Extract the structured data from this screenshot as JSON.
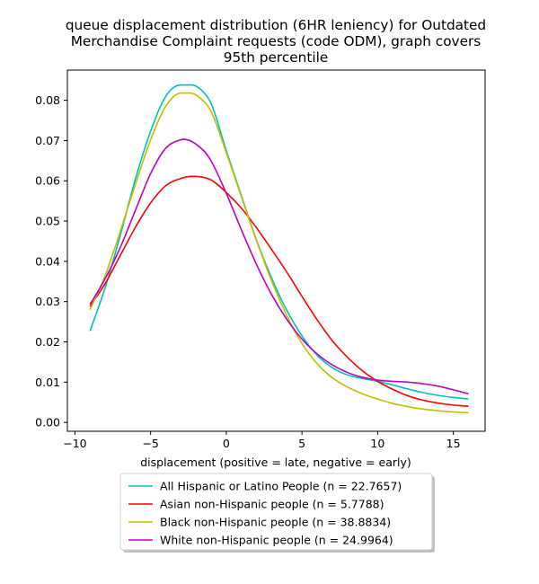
{
  "chart_data": {
    "type": "line",
    "title_lines": [
      "queue displacement distribution (6HR leniency) for Outdated",
      "Merchandise Complaint  requests (code ODM), graph covers",
      "95th percentile"
    ],
    "xlabel": "displacement (positive = late, negative = early)",
    "ylabel": "",
    "xlim": [
      -10.5,
      17.1
    ],
    "ylim": [
      -0.0022,
      0.0875
    ],
    "x_ticks": [
      -10,
      -5,
      0,
      5,
      10,
      15
    ],
    "y_ticks": [
      0.0,
      0.01,
      0.02,
      0.03,
      0.04,
      0.05,
      0.06,
      0.07,
      0.08
    ],
    "x_tick_labels": [
      "−10",
      "−5",
      "0",
      "5",
      "10",
      "15"
    ],
    "y_tick_labels": [
      "0.00",
      "0.01",
      "0.02",
      "0.03",
      "0.04",
      "0.05",
      "0.06",
      "0.07",
      "0.08"
    ],
    "grid": false,
    "legend_position": "below",
    "series": [
      {
        "name": "All Hispanic or Latino People (n = 22.7657)",
        "color": "#00bfbf",
        "x": [
          -9,
          -8,
          -7,
          -6,
          -5,
          -4,
          -3,
          -2.3,
          -1.5,
          -1,
          0,
          1,
          2,
          3,
          4,
          5,
          6,
          7,
          8,
          9,
          10,
          11,
          12,
          13,
          14,
          15,
          16
        ],
        "y": [
          0.0227,
          0.0335,
          0.0465,
          0.0605,
          0.0723,
          0.081,
          0.0838,
          0.0838,
          0.082,
          0.0792,
          0.0675,
          0.0563,
          0.0452,
          0.0358,
          0.0278,
          0.0215,
          0.0167,
          0.0136,
          0.0118,
          0.0109,
          0.0102,
          0.0093,
          0.0083,
          0.0074,
          0.0067,
          0.0062,
          0.0058
        ]
      },
      {
        "name": "Asian non-Hispanic people (n = 5.7788)",
        "color": "#ff0000",
        "x": [
          -9,
          -8,
          -7,
          -6,
          -5,
          -4,
          -3,
          -2.3,
          -1,
          0,
          1,
          2,
          3,
          4,
          5,
          6,
          7,
          8,
          9,
          10,
          11,
          12,
          13,
          14,
          15,
          16
        ],
        "y": [
          0.0288,
          0.0345,
          0.0415,
          0.0485,
          0.0545,
          0.0588,
          0.0606,
          0.0611,
          0.0602,
          0.0571,
          0.0532,
          0.0483,
          0.0429,
          0.0373,
          0.0313,
          0.0255,
          0.0203,
          0.0162,
          0.0128,
          0.0102,
          0.0082,
          0.0066,
          0.0055,
          0.0048,
          0.0043,
          0.004
        ]
      },
      {
        "name": "Black non-Hispanic people (n = 38.8834)",
        "color": "#bfbf00",
        "x": [
          -9,
          -8,
          -7,
          -6,
          -5,
          -4,
          -3,
          -2.4,
          -1.5,
          -1,
          0,
          1,
          2,
          3,
          4,
          5,
          6,
          7,
          8,
          9,
          10,
          11,
          12,
          13,
          14,
          15,
          16
        ],
        "y": [
          0.028,
          0.0365,
          0.0475,
          0.0592,
          0.0702,
          0.0785,
          0.0818,
          0.0818,
          0.0798,
          0.0772,
          0.067,
          0.056,
          0.0451,
          0.0351,
          0.0265,
          0.0196,
          0.0146,
          0.0111,
          0.0088,
          0.0071,
          0.0058,
          0.0047,
          0.0039,
          0.0033,
          0.0029,
          0.0026,
          0.0024
        ]
      },
      {
        "name": "White non-Hispanic people (n = 24.9964)",
        "color": "#bf00bf",
        "x": [
          -9,
          -8,
          -7,
          -6,
          -5,
          -4,
          -3,
          -2.8,
          -1.5,
          -1,
          0,
          1,
          2,
          3,
          4,
          5,
          6,
          7,
          8,
          9,
          10,
          11,
          12,
          13,
          14,
          15,
          16
        ],
        "y": [
          0.0293,
          0.0357,
          0.0435,
          0.0527,
          0.0618,
          0.0681,
          0.0702,
          0.0703,
          0.0675,
          0.0649,
          0.0569,
          0.0478,
          0.0392,
          0.0317,
          0.0256,
          0.0207,
          0.017,
          0.0143,
          0.0124,
          0.0112,
          0.0105,
          0.0102,
          0.01,
          0.0096,
          0.009,
          0.0081,
          0.0071
        ]
      }
    ]
  }
}
